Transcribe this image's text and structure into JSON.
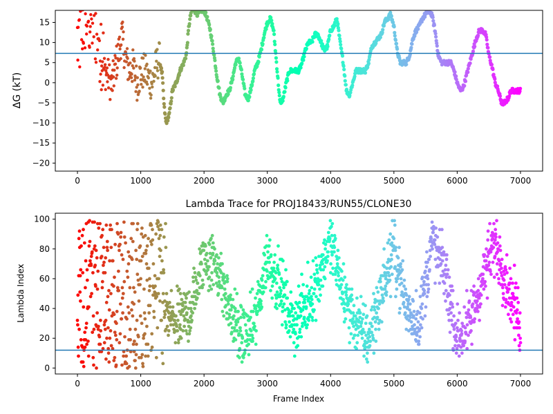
{
  "chart_data": [
    {
      "type": "scatter",
      "title": "",
      "xlabel": "",
      "ylabel": "ΔG (kT)",
      "xlim": [
        -350,
        7350
      ],
      "ylim": [
        -22,
        18
      ],
      "xticks": [
        "0",
        "1000",
        "2000",
        "3000",
        "4000",
        "5000",
        "6000",
        "7000"
      ],
      "yticks": [
        "−20",
        "−15",
        "−10",
        "−5",
        "0",
        "5",
        "10",
        "15"
      ],
      "hline": 7.3,
      "hline_color": "#1f77b4",
      "colormap": "rainbow (reversed over frame index: red at frame 0 → violet at frame 7000)",
      "x_range": [
        0,
        7000
      ],
      "trace_anchors_x": [
        0,
        40,
        80,
        120,
        160,
        200,
        260,
        320,
        380,
        420,
        480,
        540,
        600,
        660,
        700,
        760,
        820,
        880,
        940,
        1000,
        1060,
        1120,
        1180,
        1240,
        1290,
        1340,
        1370,
        1400,
        1450,
        1500,
        1560,
        1620,
        1680,
        1720,
        1760,
        1800,
        1850,
        1900,
        1950,
        2000,
        2050,
        2100,
        2150,
        2200,
        2250,
        2300,
        2350,
        2400,
        2450,
        2500,
        2550,
        2600,
        2650,
        2700,
        2750,
        2800,
        2850,
        2900,
        2950,
        3000,
        3050,
        3100,
        3150,
        3200,
        3250,
        3300,
        3350,
        3400,
        3450,
        3500,
        3550,
        3600,
        3650,
        3700,
        3750,
        3800,
        3850,
        3900,
        3950,
        4000,
        4050,
        4100,
        4150,
        4200,
        4250,
        4300,
        4350,
        4400,
        4450,
        4500,
        4550,
        4600,
        4650,
        4700,
        4750,
        4800,
        4850,
        4900,
        4950,
        5000,
        5050,
        5100,
        5150,
        5200,
        5250,
        5300,
        5350,
        5400,
        5450,
        5500,
        5550,
        5600,
        5650,
        5700,
        5750,
        5800,
        5850,
        5900,
        5950,
        6000,
        6050,
        6100,
        6150,
        6200,
        6250,
        6300,
        6350,
        6400,
        6450,
        6500,
        6550,
        6600,
        6650,
        6700,
        6750,
        6800,
        6850,
        6900,
        6950,
        7000
      ],
      "trace_anchors_y": [
        10,
        12,
        16,
        18,
        17,
        17,
        16,
        14,
        10,
        3,
        2,
        -1,
        4,
        8,
        12,
        6,
        3,
        4,
        0,
        2,
        3,
        1,
        0,
        4,
        6,
        2,
        -6,
        -10,
        -8,
        -2,
        0,
        3,
        5,
        7,
        14,
        18,
        18,
        17,
        18,
        18,
        16,
        13,
        8,
        2,
        -3,
        -5,
        -3,
        -2,
        1,
        5,
        6,
        2,
        -3,
        -4,
        -1,
        3,
        5,
        8,
        12,
        15,
        16,
        13,
        4,
        -5,
        -4,
        0,
        3,
        3,
        3,
        3,
        5,
        8,
        10,
        10,
        12,
        12,
        10,
        8,
        9,
        13,
        14,
        16,
        10,
        5,
        -2,
        -3,
        0,
        3,
        3,
        3,
        3,
        5,
        9,
        10,
        11,
        12,
        15,
        16,
        17,
        14,
        8,
        5,
        5,
        5,
        7,
        11,
        13,
        14,
        16,
        17,
        18,
        17,
        13,
        7,
        5,
        5,
        5,
        5,
        3,
        0,
        -2,
        -1,
        2,
        5,
        8,
        11,
        13,
        13,
        12,
        7,
        4,
        0,
        -2,
        -5,
        -5,
        -4,
        -2,
        -2,
        -2,
        -2
      ]
    },
    {
      "type": "scatter",
      "title": "Lambda Trace for PROJ18433/RUN55/CLONE30",
      "xlabel": "Frame Index",
      "ylabel": "Lambda Index",
      "xlim": [
        -350,
        7350
      ],
      "ylim": [
        -4,
        104
      ],
      "xticks": [
        "0",
        "1000",
        "2000",
        "3000",
        "4000",
        "5000",
        "6000",
        "7000"
      ],
      "yticks": [
        "0",
        "20",
        "40",
        "60",
        "80",
        "100"
      ],
      "hline": 12,
      "hline_color": "#1f77b4",
      "colormap": "rainbow (reversed over frame index: red at frame 0 → violet at frame 7000)",
      "x_range": [
        0,
        7000
      ],
      "lambda_range": [
        0,
        99
      ],
      "center_anchors_x": [
        0,
        200,
        400,
        600,
        800,
        1000,
        1200,
        1400,
        1600,
        1800,
        2000,
        2200,
        2400,
        2600,
        2800,
        3000,
        3200,
        3400,
        3600,
        3800,
        4000,
        4200,
        4400,
        4600,
        4800,
        5000,
        5200,
        5400,
        5600,
        5800,
        6000,
        6200,
        6400,
        6600,
        6800,
        7000
      ],
      "center_anchors_y": [
        50,
        50,
        50,
        45,
        40,
        42,
        45,
        35,
        30,
        40,
        75,
        70,
        40,
        20,
        30,
        75,
        55,
        30,
        40,
        60,
        85,
        50,
        30,
        20,
        50,
        80,
        40,
        30,
        85,
        65,
        20,
        30,
        60,
        85,
        55,
        30
      ]
    }
  ]
}
